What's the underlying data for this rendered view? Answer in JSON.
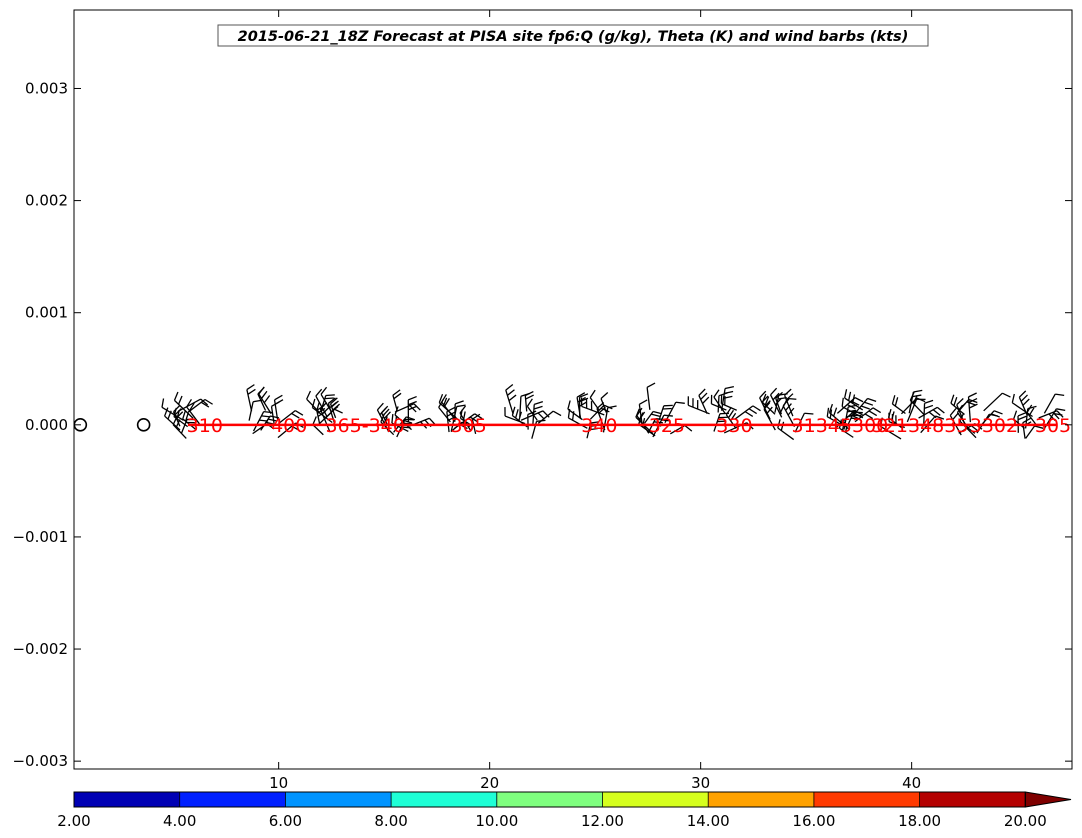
{
  "chart_data": {
    "type": "scatter",
    "title": "2015-06-21_18Z Forecast at PISA site fp6:Q (g/kg), Theta (K) and wind barbs (kts)",
    "xlim": [
      0.3,
      47.6
    ],
    "ylim": [
      -0.00307,
      0.0037
    ],
    "x_ticks": [
      10,
      20,
      30,
      40
    ],
    "y_ticks": [
      {
        "value": 0.003,
        "label": "0.003"
      },
      {
        "value": 0.002,
        "label": "0.002"
      },
      {
        "value": 0.001,
        "label": "0.001"
      },
      {
        "value": 0.0,
        "label": "0.000"
      },
      {
        "value": -0.001,
        "label": "−0.001"
      },
      {
        "value": -0.002,
        "label": "−0.002"
      },
      {
        "value": -0.003,
        "label": "−0.003"
      }
    ],
    "q_markers": {
      "x": [
        0.6,
        3.6
      ],
      "y": 0
    },
    "barb_columns_x": [
      5.7,
      9.3,
      12.5,
      15.6,
      18.7,
      21.7,
      24.9,
      27.9,
      31.0,
      34.0,
      37.0,
      40.0,
      42.8,
      45.7
    ],
    "theta_line": {
      "x_start": 5.7,
      "x_end": 46.9,
      "y": 0,
      "color": "#ff0000"
    },
    "theta_labels": [
      {
        "x": 6.5,
        "text": "310"
      },
      {
        "x": 10.5,
        "text": "400"
      },
      {
        "x": 14.1,
        "text": "365-340"
      },
      {
        "x": 19.0,
        "text": "305"
      },
      {
        "x": 25.2,
        "text": "340"
      },
      {
        "x": 28.4,
        "text": "325"
      },
      {
        "x": 31.6,
        "text": "330"
      },
      {
        "x": 36.6,
        "text": "31345300"
      },
      {
        "x": 40.4,
        "text": "32134835"
      },
      {
        "x": 43.9,
        "text": "3302"
      },
      {
        "x": 46.7,
        "text": "305"
      }
    ],
    "colorbar": {
      "ticks": [
        "2.00",
        "4.00",
        "6.00",
        "8.00",
        "10.00",
        "12.00",
        "14.00",
        "16.00",
        "18.00",
        "20.00"
      ],
      "colors": [
        "#0000b4",
        "#0020ff",
        "#0094ff",
        "#1effd6",
        "#7fff7f",
        "#d6ff1e",
        "#ffa200",
        "#ff3a00",
        "#b40000"
      ],
      "extend_color": "#7f0000"
    }
  }
}
